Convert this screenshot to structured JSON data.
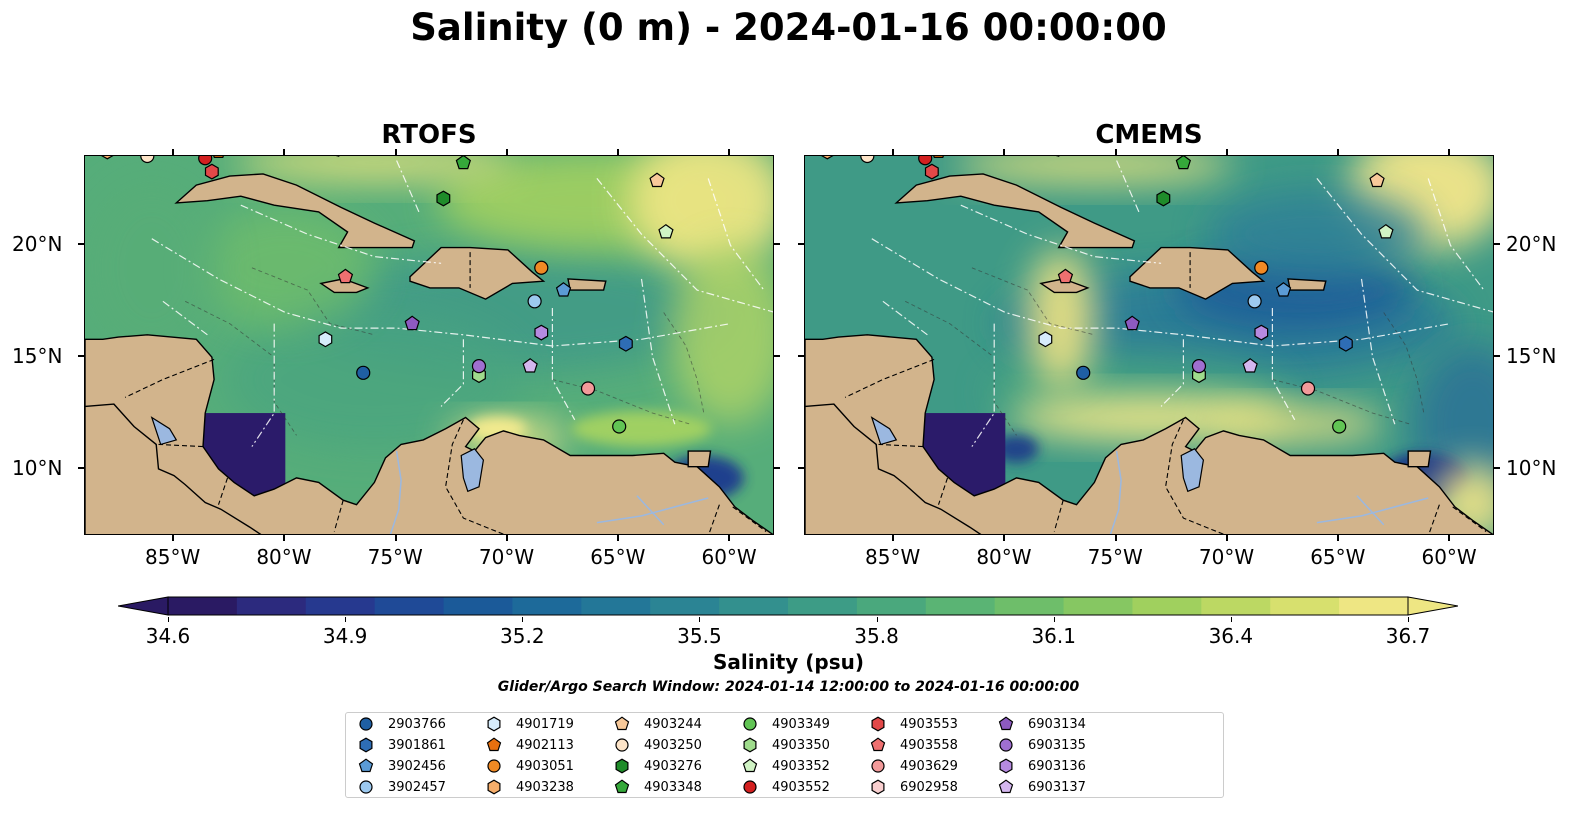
{
  "title": "Salinity (0 m) - 2024-01-16 00:00:00",
  "panels": [
    {
      "name": "RTOFS"
    },
    {
      "name": "CMEMS"
    }
  ],
  "map_extent": {
    "lon": [
      -89,
      -58
    ],
    "lat": [
      7,
      24
    ]
  },
  "lon_ticks": [
    "85°W",
    "80°W",
    "75°W",
    "70°W",
    "65°W",
    "60°W"
  ],
  "lon_tick_values": [
    -85,
    -80,
    -75,
    -70,
    -65,
    -60
  ],
  "lat_ticks": [
    "20°N",
    "15°N",
    "10°N"
  ],
  "lat_tick_values": [
    20,
    15,
    10
  ],
  "colors": {
    "land": "#d2b48c",
    "lake": "#9bb8e0",
    "ocean_low": "#2b1a6b",
    "ocean_high": "#f5e98a"
  },
  "colorbar": {
    "label": "Salinity (psu)",
    "min": 34.6,
    "max": 36.7,
    "ticks": [
      "34.6",
      "34.9",
      "35.2",
      "35.5",
      "35.8",
      "36.1",
      "36.4",
      "36.7"
    ],
    "colors": [
      "#2a1a63",
      "#2c2a7e",
      "#26398f",
      "#1f4a97",
      "#1b5a99",
      "#1d6a9a",
      "#237798",
      "#2b8494",
      "#33908e",
      "#3d9c86",
      "#4aa87d",
      "#5ab474",
      "#6ebe6a",
      "#86c762",
      "#a0d05e",
      "#bcd863",
      "#d7e06e",
      "#eee683"
    ]
  },
  "window_note": "Glider/Argo Search Window: 2024-01-14 12:00:00 to 2024-01-16 00:00:00",
  "floats": [
    {
      "id": "2903766",
      "marker": "circle",
      "color": "#1f5fa3",
      "lon": -76.5,
      "lat": 14.3
    },
    {
      "id": "3901861",
      "marker": "hexagon",
      "color": "#2e6db5",
      "lon": -64.7,
      "lat": 15.6
    },
    {
      "id": "3902456",
      "marker": "pentagon",
      "color": "#5b9bd5",
      "lon": -67.5,
      "lat": 18.0
    },
    {
      "id": "3902457",
      "marker": "circle",
      "color": "#9cc9ef",
      "lon": -68.8,
      "lat": 17.5
    },
    {
      "id": "4901719",
      "marker": "hexagon",
      "color": "#d6ecfb",
      "lon": -78.2,
      "lat": 15.8
    },
    {
      "id": "4902113",
      "marker": "pentagon",
      "color": "#e8700f",
      "lon": -83.0,
      "lat": 24.2
    },
    {
      "id": "4903051",
      "marker": "circle",
      "color": "#f08a24",
      "lon": -68.5,
      "lat": 19.0
    },
    {
      "id": "4903238",
      "marker": "hexagon",
      "color": "#f6ae6b",
      "lon": -88.0,
      "lat": 24.2
    },
    {
      "id": "4903244",
      "marker": "pentagon",
      "color": "#f8c99a",
      "lon": -63.3,
      "lat": 22.9
    },
    {
      "id": "4903250",
      "marker": "circle",
      "color": "#fde4c8",
      "lon": -86.2,
      "lat": 24.0
    },
    {
      "id": "4903276",
      "marker": "hexagon",
      "color": "#1f8c2a",
      "lon": -72.9,
      "lat": 22.1
    },
    {
      "id": "4903348",
      "marker": "pentagon",
      "color": "#35a83a",
      "lon": -72.0,
      "lat": 23.7
    },
    {
      "id": "4903349",
      "marker": "circle",
      "color": "#61c454",
      "lon": -65.0,
      "lat": 11.9
    },
    {
      "id": "4903350",
      "marker": "hexagon",
      "color": "#9fdc8c",
      "lon": -71.3,
      "lat": 14.2
    },
    {
      "id": "4903352",
      "marker": "pentagon",
      "color": "#d0f3c4",
      "lon": -62.9,
      "lat": 20.6
    },
    {
      "id": "4903552",
      "marker": "circle",
      "color": "#d32020",
      "lon": -83.6,
      "lat": 23.9
    },
    {
      "id": "4903553",
      "marker": "hexagon",
      "color": "#e24848",
      "lon": -83.3,
      "lat": 23.3
    },
    {
      "id": "4903558",
      "marker": "pentagon",
      "color": "#ef7070",
      "lon": -77.3,
      "lat": 18.6
    },
    {
      "id": "4903629",
      "marker": "circle",
      "color": "#f29a9a",
      "lon": -66.4,
      "lat": 13.6
    },
    {
      "id": "6902958",
      "marker": "hexagon",
      "color": "#f9cfcf",
      "lon": -84.9,
      "lat": 24.5
    },
    {
      "id": "6903134",
      "marker": "pentagon",
      "color": "#8d5ac1",
      "lon": -74.3,
      "lat": 16.5
    },
    {
      "id": "6903135",
      "marker": "circle",
      "color": "#9f6fd0",
      "lon": -71.3,
      "lat": 14.6
    },
    {
      "id": "6903136",
      "marker": "hexagon",
      "color": "#b68ae0",
      "lon": -68.5,
      "lat": 16.1
    },
    {
      "id": "6903137",
      "marker": "pentagon",
      "color": "#d4b7ef",
      "lon": -69.0,
      "lat": 14.6
    }
  ]
}
